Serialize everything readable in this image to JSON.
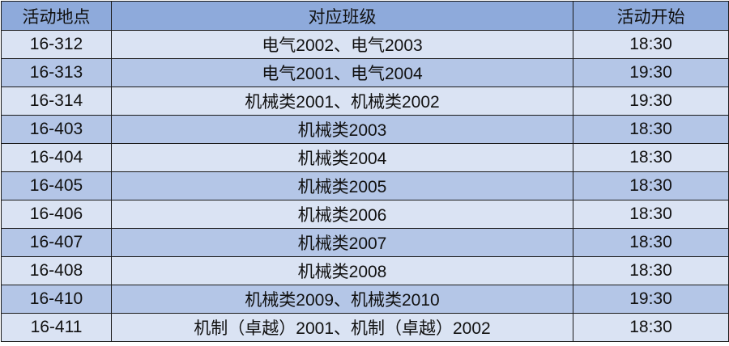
{
  "table": {
    "header": [
      "活动地点",
      "对应班级",
      "活动开始"
    ],
    "rows": [
      [
        "16-312",
        "电气2002、电气2003",
        "18:30"
      ],
      [
        "16-313",
        "电气2001、电气2004",
        "19:30"
      ],
      [
        "16-314",
        "机械类2001、机械类2002",
        "19:30"
      ],
      [
        "16-403",
        "机械类2003",
        "18:30"
      ],
      [
        "16-404",
        "机械类2004",
        "18:30"
      ],
      [
        "16-405",
        "机械类2005",
        "18:30"
      ],
      [
        "16-406",
        "机械类2006",
        "18:30"
      ],
      [
        "16-407",
        "机械类2007",
        "18:30"
      ],
      [
        "16-408",
        "机械类2008",
        "18:30"
      ],
      [
        "16-410",
        "机械类2009、机械类2010",
        "19:30"
      ],
      [
        "16-411",
        "机制（卓越）2001、机制（卓越）2002",
        "18:30"
      ]
    ]
  }
}
